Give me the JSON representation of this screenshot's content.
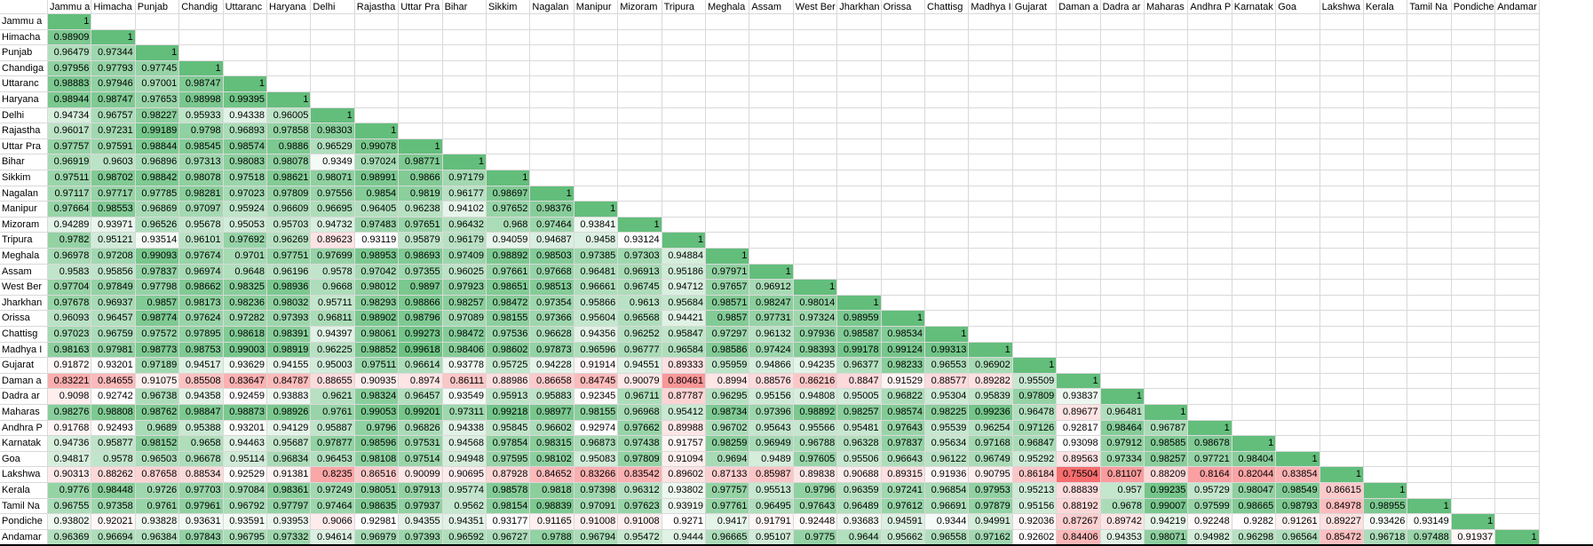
{
  "colors": {
    "high": "#63be7b",
    "mid": "#ffffff",
    "low": "#f8696b",
    "gridline": "#d9d9d9"
  },
  "color_scale": {
    "min": 0.75,
    "mid": 0.93,
    "max": 1.0
  },
  "columns": [
    "Jammu a",
    "Himacha",
    "Punjab",
    "Chandig",
    "Uttaranc",
    "Haryana",
    "Delhi",
    "Rajastha",
    "Uttar Pra",
    "Bihar",
    "Sikkim",
    "Nagalan",
    "Manipur",
    "Mizoram",
    "Tripura",
    "Meghala",
    "Assam",
    "West Ber",
    "Jharkhan",
    "Orissa",
    "Chattisg",
    "Madhya I",
    "Gujarat",
    "Daman a",
    "Dadra ar",
    "Maharas",
    "Andhra P",
    "Karnatak",
    "Goa",
    "Lakshwa",
    "Kerala",
    "Tamil Na",
    "Pondiche",
    "Andamar"
  ],
  "rows": [
    {
      "label": "Jammu a",
      "values": [
        "1"
      ]
    },
    {
      "label": "Himacha",
      "values": [
        "0.98909",
        "1"
      ]
    },
    {
      "label": "Punjab",
      "values": [
        "0.96479",
        "0.97344",
        "1"
      ]
    },
    {
      "label": "Chandiga",
      "values": [
        "0.97956",
        "0.97793",
        "0.97745",
        "1"
      ]
    },
    {
      "label": "Uttaranc",
      "values": [
        "0.98883",
        "0.97946",
        "0.97001",
        "0.98747",
        "1"
      ]
    },
    {
      "label": "Haryana",
      "values": [
        "0.98944",
        "0.98747",
        "0.97653",
        "0.98998",
        "0.99395",
        "1"
      ]
    },
    {
      "label": "Delhi",
      "values": [
        "0.94734",
        "0.96757",
        "0.98227",
        "0.95933",
        "0.94338",
        "0.96005",
        "1"
      ]
    },
    {
      "label": "Rajastha",
      "values": [
        "0.96017",
        "0.97231",
        "0.99189",
        "0.9798",
        "0.96893",
        "0.97858",
        "0.98303",
        "1"
      ]
    },
    {
      "label": "Uttar Pra",
      "values": [
        "0.97757",
        "0.97591",
        "0.98844",
        "0.98545",
        "0.98574",
        "0.9886",
        "0.96529",
        "0.99078",
        "1"
      ]
    },
    {
      "label": "Bihar",
      "values": [
        "0.96919",
        "0.9603",
        "0.96896",
        "0.97313",
        "0.98083",
        "0.98078",
        "0.9349",
        "0.97024",
        "0.98771",
        "1"
      ]
    },
    {
      "label": "Sikkim",
      "values": [
        "0.97511",
        "0.98702",
        "0.98842",
        "0.98078",
        "0.97518",
        "0.98621",
        "0.98071",
        "0.98991",
        "0.9866",
        "0.97179",
        "1"
      ]
    },
    {
      "label": "Nagalan",
      "values": [
        "0.97117",
        "0.97717",
        "0.97785",
        "0.98281",
        "0.97023",
        "0.97809",
        "0.97556",
        "0.9854",
        "0.9819",
        "0.96177",
        "0.98697",
        "1"
      ]
    },
    {
      "label": "Manipur",
      "values": [
        "0.97664",
        "0.98553",
        "0.96869",
        "0.97097",
        "0.95924",
        "0.96609",
        "0.96695",
        "0.96405",
        "0.96238",
        "0.94102",
        "0.97652",
        "0.98376",
        "1"
      ]
    },
    {
      "label": "Mizoram",
      "values": [
        "0.94289",
        "0.93971",
        "0.96526",
        "0.95678",
        "0.95053",
        "0.95703",
        "0.94732",
        "0.97483",
        "0.97651",
        "0.96432",
        "0.968",
        "0.97464",
        "0.93841",
        "1"
      ]
    },
    {
      "label": "Tripura",
      "values": [
        "0.9782",
        "0.95121",
        "0.93514",
        "0.96101",
        "0.97692",
        "0.96269",
        "0.89623",
        "0.93119",
        "0.95879",
        "0.96179",
        "0.94059",
        "0.94687",
        "0.9458",
        "0.93124",
        "1"
      ]
    },
    {
      "label": "Meghala",
      "values": [
        "0.96978",
        "0.97208",
        "0.99093",
        "0.97674",
        "0.9701",
        "0.97751",
        "0.97699",
        "0.98953",
        "0.98693",
        "0.97409",
        "0.98892",
        "0.98503",
        "0.97385",
        "0.97303",
        "0.94884",
        "1"
      ]
    },
    {
      "label": "Assam",
      "values": [
        "0.9583",
        "0.95856",
        "0.97837",
        "0.96974",
        "0.9648",
        "0.96196",
        "0.9578",
        "0.97042",
        "0.97355",
        "0.96025",
        "0.97661",
        "0.97668",
        "0.96481",
        "0.96913",
        "0.95186",
        "0.97971",
        "1"
      ]
    },
    {
      "label": "West Ber",
      "values": [
        "0.97704",
        "0.97849",
        "0.97798",
        "0.98662",
        "0.98325",
        "0.98936",
        "0.9668",
        "0.98012",
        "0.9897",
        "0.97923",
        "0.98651",
        "0.98513",
        "0.96661",
        "0.96745",
        "0.94712",
        "0.97657",
        "0.96912",
        "1"
      ]
    },
    {
      "label": "Jharkhan",
      "values": [
        "0.97678",
        "0.96937",
        "0.9857",
        "0.98173",
        "0.98236",
        "0.98032",
        "0.95711",
        "0.98293",
        "0.98866",
        "0.98257",
        "0.98472",
        "0.97354",
        "0.95866",
        "0.9613",
        "0.95684",
        "0.98571",
        "0.98247",
        "0.98014",
        "1"
      ]
    },
    {
      "label": "Orissa",
      "values": [
        "0.96093",
        "0.96457",
        "0.98774",
        "0.97624",
        "0.97282",
        "0.97393",
        "0.96811",
        "0.98902",
        "0.98796",
        "0.97089",
        "0.98155",
        "0.97366",
        "0.95604",
        "0.96568",
        "0.94421",
        "0.9857",
        "0.97731",
        "0.97324",
        "0.98959",
        "1"
      ]
    },
    {
      "label": "Chattisg",
      "values": [
        "0.97023",
        "0.96759",
        "0.97572",
        "0.97895",
        "0.98618",
        "0.98391",
        "0.94397",
        "0.98061",
        "0.99273",
        "0.98472",
        "0.97536",
        "0.96628",
        "0.94356",
        "0.96252",
        "0.95847",
        "0.97297",
        "0.96132",
        "0.97936",
        "0.98587",
        "0.98534",
        "1"
      ]
    },
    {
      "label": "Madhya I",
      "values": [
        "0.98163",
        "0.97981",
        "0.98773",
        "0.98753",
        "0.99003",
        "0.98919",
        "0.96225",
        "0.98852",
        "0.99618",
        "0.98406",
        "0.98602",
        "0.97873",
        "0.96596",
        "0.96777",
        "0.96584",
        "0.98586",
        "0.97424",
        "0.98393",
        "0.99178",
        "0.99124",
        "0.99313",
        "1"
      ]
    },
    {
      "label": "Gujarat",
      "values": [
        "0.91872",
        "0.93201",
        "0.97189",
        "0.94517",
        "0.93629",
        "0.94155",
        "0.95003",
        "0.97511",
        "0.96614",
        "0.93778",
        "0.95725",
        "0.94228",
        "0.91914",
        "0.94551",
        "0.89333",
        "0.95959",
        "0.94866",
        "0.94235",
        "0.96377",
        "0.98233",
        "0.96553",
        "0.96902",
        "1"
      ]
    },
    {
      "label": "Daman a",
      "values": [
        "0.83221",
        "0.84655",
        "0.91075",
        "0.85508",
        "0.83647",
        "0.84787",
        "0.88655",
        "0.90935",
        "0.8974",
        "0.86111",
        "0.88986",
        "0.86658",
        "0.84745",
        "0.90079",
        "0.80461",
        "0.8994",
        "0.88576",
        "0.86216",
        "0.8847",
        "0.91529",
        "0.88577",
        "0.89282",
        "0.95509",
        "1"
      ]
    },
    {
      "label": "Dadra ar",
      "values": [
        "0.9098",
        "0.92742",
        "0.96738",
        "0.94358",
        "0.92459",
        "0.93883",
        "0.9621",
        "0.98324",
        "0.96457",
        "0.93549",
        "0.95913",
        "0.95883",
        "0.92345",
        "0.96711",
        "0.87787",
        "0.96295",
        "0.95156",
        "0.94808",
        "0.95005",
        "0.96822",
        "0.95304",
        "0.95839",
        "0.97809",
        "0.93837",
        "1"
      ]
    },
    {
      "label": "Maharas",
      "values": [
        "0.98276",
        "0.98808",
        "0.98762",
        "0.98847",
        "0.98873",
        "0.98926",
        "0.9761",
        "0.99053",
        "0.99201",
        "0.97311",
        "0.99218",
        "0.98977",
        "0.98155",
        "0.96968",
        "0.95412",
        "0.98734",
        "0.97396",
        "0.98892",
        "0.98257",
        "0.98574",
        "0.98225",
        "0.99236",
        "0.96478",
        "0.89677",
        "0.96481",
        "1"
      ]
    },
    {
      "label": "Andhra P",
      "values": [
        "0.91768",
        "0.92493",
        "0.9689",
        "0.95388",
        "0.93201",
        "0.94129",
        "0.95887",
        "0.9796",
        "0.96826",
        "0.94338",
        "0.95845",
        "0.96602",
        "0.92974",
        "0.97662",
        "0.89988",
        "0.96702",
        "0.95643",
        "0.95566",
        "0.95481",
        "0.97643",
        "0.95539",
        "0.96254",
        "0.97126",
        "0.92817",
        "0.98464",
        "0.96787",
        "1"
      ]
    },
    {
      "label": "Karnatak",
      "values": [
        "0.94736",
        "0.95877",
        "0.98152",
        "0.9658",
        "0.94463",
        "0.95687",
        "0.97877",
        "0.98596",
        "0.97531",
        "0.94568",
        "0.97854",
        "0.98315",
        "0.96873",
        "0.97438",
        "0.91757",
        "0.98259",
        "0.96949",
        "0.96788",
        "0.96328",
        "0.97837",
        "0.95634",
        "0.97168",
        "0.96847",
        "0.93098",
        "0.97912",
        "0.98585",
        "0.98678",
        "1"
      ]
    },
    {
      "label": "Goa",
      "values": [
        "0.94817",
        "0.9578",
        "0.96503",
        "0.96678",
        "0.95114",
        "0.96834",
        "0.96453",
        "0.98108",
        "0.97514",
        "0.94948",
        "0.97595",
        "0.98102",
        "0.95083",
        "0.97809",
        "0.91094",
        "0.9694",
        "0.9489",
        "0.97605",
        "0.95506",
        "0.96643",
        "0.96122",
        "0.96749",
        "0.95292",
        "0.89563",
        "0.97334",
        "0.98257",
        "0.97721",
        "0.98404",
        "1"
      ]
    },
    {
      "label": "Lakshwa",
      "values": [
        "0.90313",
        "0.88262",
        "0.87658",
        "0.88534",
        "0.92529",
        "0.91381",
        "0.8235",
        "0.86516",
        "0.90099",
        "0.90695",
        "0.87928",
        "0.84652",
        "0.83266",
        "0.83542",
        "0.89602",
        "0.87133",
        "0.85987",
        "0.89838",
        "0.90688",
        "0.89315",
        "0.91936",
        "0.90795",
        "0.86184",
        "0.75504",
        "0.81107",
        "0.88209",
        "0.8164",
        "0.82044",
        "0.83854",
        "1"
      ]
    },
    {
      "label": "Kerala",
      "values": [
        "0.9776",
        "0.98448",
        "0.9726",
        "0.97703",
        "0.97084",
        "0.98361",
        "0.97249",
        "0.98051",
        "0.97913",
        "0.95774",
        "0.98578",
        "0.9818",
        "0.97398",
        "0.96312",
        "0.93802",
        "0.97757",
        "0.95513",
        "0.9796",
        "0.96359",
        "0.97241",
        "0.96854",
        "0.97953",
        "0.95213",
        "0.88839",
        "0.957",
        "0.99235",
        "0.95729",
        "0.98047",
        "0.98549",
        "0.86615",
        "1"
      ]
    },
    {
      "label": "Tamil Na",
      "values": [
        "0.96755",
        "0.97358",
        "0.9761",
        "0.97961",
        "0.96792",
        "0.97797",
        "0.97464",
        "0.98635",
        "0.97937",
        "0.9562",
        "0.98154",
        "0.98839",
        "0.97091",
        "0.97623",
        "0.93919",
        "0.97761",
        "0.96495",
        "0.97643",
        "0.96489",
        "0.97612",
        "0.96691",
        "0.97879",
        "0.95156",
        "0.88192",
        "0.9678",
        "0.99007",
        "0.97599",
        "0.98665",
        "0.98793",
        "0.84978",
        "0.98955",
        "1"
      ]
    },
    {
      "label": "Pondiche",
      "values": [
        "0.93802",
        "0.92021",
        "0.93828",
        "0.93631",
        "0.93591",
        "0.93953",
        "0.9066",
        "0.92981",
        "0.94355",
        "0.94351",
        "0.93177",
        "0.91165",
        "0.91008",
        "0.91008",
        "0.9271",
        "0.9417",
        "0.91791",
        "0.92448",
        "0.93683",
        "0.94591",
        "0.9344",
        "0.94991",
        "0.92036",
        "0.87267",
        "0.89742",
        "0.94219",
        "0.92248",
        "0.9282",
        "0.91261",
        "0.89227",
        "0.93426",
        "0.93149",
        "1"
      ]
    },
    {
      "label": "Andamar",
      "values": [
        "0.96369",
        "0.96694",
        "0.96384",
        "0.97843",
        "0.96795",
        "0.97332",
        "0.94614",
        "0.96979",
        "0.97393",
        "0.96592",
        "0.96727",
        "0.9788",
        "0.96794",
        "0.95472",
        "0.9444",
        "0.96665",
        "0.95107",
        "0.9775",
        "0.9644",
        "0.95662",
        "0.96558",
        "0.97162",
        "0.92602",
        "0.84406",
        "0.94353",
        "0.98071",
        "0.94982",
        "0.96298",
        "0.96564",
        "0.85472",
        "0.96718",
        "0.97488",
        "0.91937",
        "1"
      ]
    }
  ]
}
